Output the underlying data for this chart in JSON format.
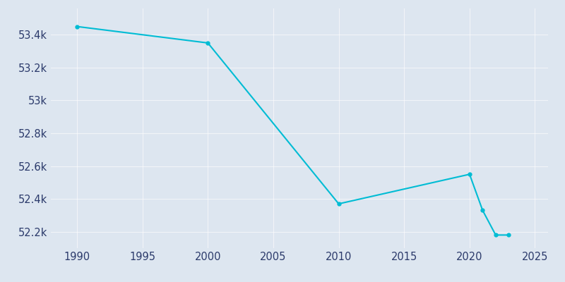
{
  "years": [
    1990,
    2000,
    2010,
    2020,
    2021,
    2022,
    2023
  ],
  "population": [
    53450,
    53350,
    52370,
    52550,
    52330,
    52180,
    52180
  ],
  "line_color": "#00BCD4",
  "marker_color": "#00BCD4",
  "background_color": "#dde6f0",
  "fig_background_color": "#dde6f0",
  "tick_color": "#2b3a6b",
  "xlim": [
    1988,
    2026
  ],
  "ylim": [
    52100,
    53560
  ],
  "xticks": [
    1990,
    1995,
    2000,
    2005,
    2010,
    2015,
    2020,
    2025
  ],
  "ytick_values": [
    52200,
    52400,
    52600,
    52800,
    53000,
    53200,
    53400
  ],
  "ytick_labels": [
    "52.2k",
    "52.4k",
    "52.6k",
    "52.8k",
    "53k",
    "53.2k",
    "53.4k"
  ]
}
